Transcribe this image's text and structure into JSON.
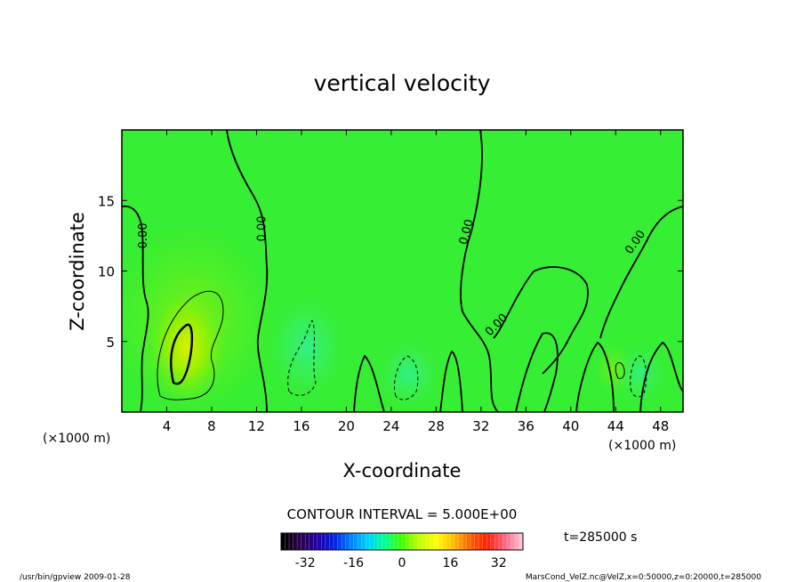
{
  "chart_data": {
    "type": "heatmap",
    "title": "vertical velocity",
    "xlabel": "X-coordinate",
    "ylabel": "Z-coordinate",
    "x_unit_left": "(×1000 m)",
    "x_unit_right": "(×1000 m)",
    "xlim": [
      0,
      50
    ],
    "ylim": [
      0,
      20
    ],
    "x_ticks": [
      4,
      8,
      12,
      16,
      20,
      24,
      28,
      32,
      36,
      40,
      44,
      48
    ],
    "y_ticks": [
      5,
      10,
      15
    ],
    "contour_interval_text": "CONTOUR INTERVAL = 5.000E+00",
    "contour_labels": [
      {
        "text": "0.00",
        "x": 2.2,
        "y": 12.5
      },
      {
        "text": "0.00",
        "x": 12.8,
        "y": 13.0
      },
      {
        "text": "0.00",
        "x": 31.0,
        "y": 12.7
      },
      {
        "text": "0.00",
        "x": 33.6,
        "y": 6.0
      },
      {
        "text": "0.00",
        "x": 46.0,
        "y": 11.9
      }
    ],
    "colorbar": {
      "min": -40,
      "max": 40,
      "ticks": [
        -32,
        -16,
        0,
        16,
        32
      ],
      "colors": [
        "#000000",
        "#2a0050",
        "#2000a0",
        "#0020e0",
        "#0080ff",
        "#00d0ff",
        "#00ff90",
        "#40ff00",
        "#c0ff00",
        "#ffff00",
        "#ffc000",
        "#ff6000",
        "#ff2000",
        "#ff6080",
        "#ffc0d0"
      ]
    },
    "background_color": "#36ee33",
    "features": [
      {
        "kind": "updraft",
        "x": 5.2,
        "z": 4.0,
        "peak": 12
      },
      {
        "kind": "downdraft",
        "x": 17.0,
        "z": 3.0,
        "peak": -5
      },
      {
        "kind": "downdraft",
        "x": 25.7,
        "z": 2.5,
        "peak": -5
      },
      {
        "kind": "updraft",
        "x": 44.2,
        "z": 2.5,
        "peak": 5
      },
      {
        "kind": "downdraft",
        "x": 46.3,
        "z": 2.5,
        "peak": -5
      }
    ]
  },
  "annotations": {
    "time": "t=285000 s",
    "footer_left": "/usr/bin/gpview  2009-01-28",
    "footer_right": "MarsCond_VelZ.nc@VelZ,x=0:50000,z=0:20000,t=285000"
  }
}
